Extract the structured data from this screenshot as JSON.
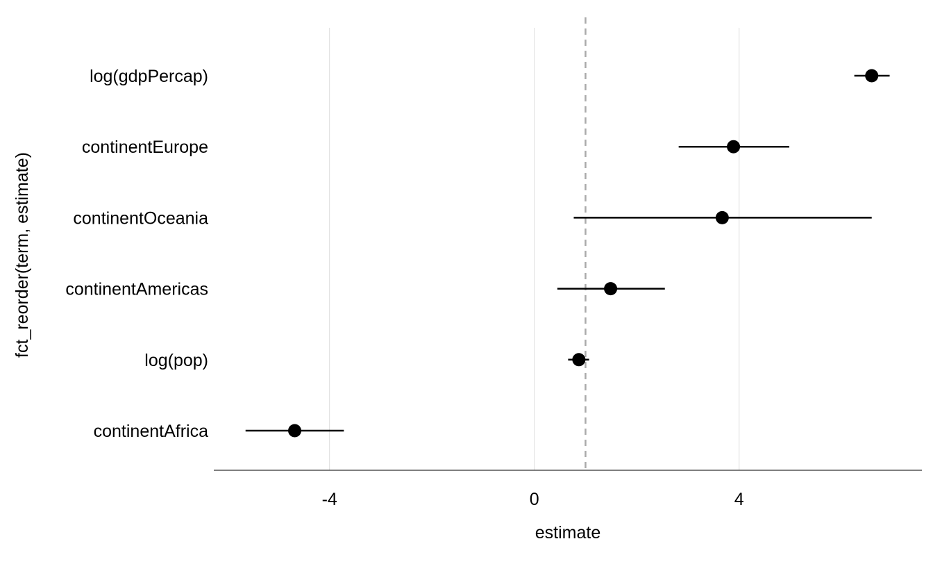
{
  "chart_data": {
    "type": "scatter",
    "subtype": "coefficient-plot-with-error-bars",
    "title": "",
    "xlabel": "estimate",
    "ylabel": "fct_reorder(term, estimate)",
    "xlim": [
      -6.26,
      7.57
    ],
    "xticks": [
      -4,
      0,
      4
    ],
    "xtick_labels": [
      "-4",
      "0",
      "4"
    ],
    "reference_line": 1,
    "grid": "vertical major",
    "categories": [
      "log(gdpPercap)",
      "continentEurope",
      "continentOceania",
      "continentAmericas",
      "log(pop)",
      "continentAfrica"
    ],
    "estimate": [
      6.59,
      3.89,
      3.67,
      1.49,
      0.87,
      -4.68
    ],
    "conf_low": [
      6.25,
      2.82,
      0.77,
      0.45,
      0.66,
      -5.64
    ],
    "conf_high": [
      6.94,
      4.98,
      6.59,
      2.55,
      1.07,
      -3.72
    ]
  }
}
